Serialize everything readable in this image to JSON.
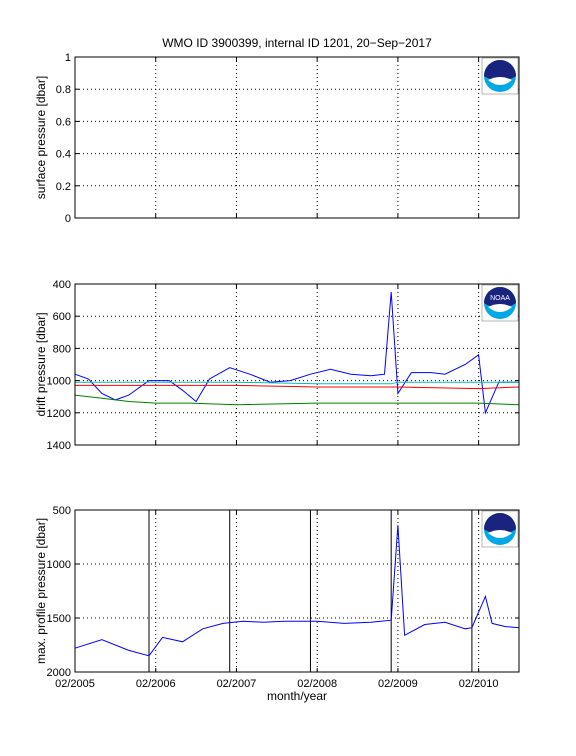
{
  "figure": {
    "title": "WMO ID 3900399, internal ID 1201, 20−Sep−2017",
    "xlabel": "month/year",
    "x_tick_labels": [
      "02/2005",
      "02/2006",
      "02/2007",
      "02/2008",
      "02/2009",
      "02/2010"
    ],
    "logo_text": "NOAA",
    "colors": {
      "blue": "#0000ff",
      "red": "#ff0000",
      "green": "#008000",
      "cyan": "#00bfbf",
      "black": "#000000",
      "noaa_navy": "#1a237e",
      "noaa_sky": "#00a8e8"
    }
  },
  "chart_data": [
    {
      "type": "line",
      "title": "WMO ID 3900399, internal ID 1201, 20−Sep−2017",
      "xlabel": "",
      "ylabel": "surface pressure [dbar]",
      "xlim": [
        "2005-02",
        "2010-08"
      ],
      "x_ticks": [
        "2005-02",
        "2006-02",
        "2007-02",
        "2008-02",
        "2009-02",
        "2010-02"
      ],
      "ylim": [
        0,
        1
      ],
      "y_ticks": [
        0,
        0.2,
        0.4,
        0.6,
        0.8,
        1
      ],
      "y_tick_labels": [
        "0",
        "0.2",
        "0.4",
        "0.6",
        "0.8",
        "1"
      ],
      "y_reversed": false,
      "grid": true,
      "series": []
    },
    {
      "type": "line",
      "xlabel": "",
      "ylabel": "drift pressure [dbar]",
      "xlim": [
        "2005-02",
        "2010-08"
      ],
      "x_ticks": [
        "2005-02",
        "2006-02",
        "2007-02",
        "2008-02",
        "2009-02",
        "2010-02"
      ],
      "ylim": [
        400,
        1400
      ],
      "y_ticks": [
        400,
        600,
        800,
        1000,
        1200,
        1400
      ],
      "y_tick_labels": [
        "400",
        "600",
        "800",
        "1000",
        "1200",
        "1400"
      ],
      "y_reversed": true,
      "grid": true,
      "series": [
        {
          "color": "#0000ff",
          "points": [
            [
              "2005-02",
              960
            ],
            [
              "2005-04",
              990
            ],
            [
              "2005-06",
              1080
            ],
            [
              "2005-08",
              1120
            ],
            [
              "2005-10",
              1090
            ],
            [
              "2006-01",
              1000
            ],
            [
              "2006-04",
              1000
            ],
            [
              "2006-06",
              1060
            ],
            [
              "2006-08",
              1130
            ],
            [
              "2006-10",
              990
            ],
            [
              "2007-01",
              920
            ],
            [
              "2007-04",
              960
            ],
            [
              "2007-07",
              1010
            ],
            [
              "2007-10",
              1000
            ],
            [
              "2008-01",
              960
            ],
            [
              "2008-04",
              930
            ],
            [
              "2008-07",
              960
            ],
            [
              "2008-10",
              970
            ],
            [
              "2008-12",
              960
            ],
            [
              "2009-01",
              450
            ],
            [
              "2009-02",
              1080
            ],
            [
              "2009-04",
              950
            ],
            [
              "2009-07",
              950
            ],
            [
              "2009-09",
              960
            ],
            [
              "2009-12",
              900
            ],
            [
              "2010-02",
              840
            ],
            [
              "2010-03",
              1200
            ],
            [
              "2010-05",
              1010
            ],
            [
              "2010-08",
              1010
            ]
          ]
        },
        {
          "color": "#ff0000",
          "points": [
            [
              "2005-02",
              1030
            ],
            [
              "2006-02",
              1030
            ],
            [
              "2007-02",
              1030
            ],
            [
              "2008-02",
              1040
            ],
            [
              "2009-01",
              1040
            ],
            [
              "2009-02",
              1040
            ],
            [
              "2010-02",
              1050
            ],
            [
              "2010-08",
              1040
            ]
          ]
        },
        {
          "color": "#008000",
          "points": [
            [
              "2005-02",
              1090
            ],
            [
              "2005-06",
              1110
            ],
            [
              "2005-10",
              1130
            ],
            [
              "2006-02",
              1140
            ],
            [
              "2006-07",
              1140
            ],
            [
              "2007-02",
              1150
            ],
            [
              "2008-02",
              1140
            ],
            [
              "2009-01",
              1140
            ],
            [
              "2009-02",
              1140
            ],
            [
              "2009-08",
              1140
            ],
            [
              "2010-02",
              1140
            ],
            [
              "2010-08",
              1150
            ]
          ]
        },
        {
          "color": "#00bfbf",
          "points": [
            [
              "2005-02",
              1010
            ],
            [
              "2006-02",
              1010
            ],
            [
              "2007-02",
              1010
            ],
            [
              "2008-02",
              1020
            ],
            [
              "2009-01",
              1020
            ],
            [
              "2009-02",
              1010
            ],
            [
              "2010-02",
              1010
            ],
            [
              "2010-08",
              1010
            ]
          ]
        }
      ]
    },
    {
      "type": "line",
      "xlabel": "month/year",
      "ylabel": "max. profile pressure [dbar]",
      "xlim": [
        "2005-02",
        "2010-08"
      ],
      "x_ticks": [
        "2005-02",
        "2006-02",
        "2007-02",
        "2008-02",
        "2009-02",
        "2010-02"
      ],
      "ylim": [
        500,
        2000
      ],
      "y_ticks": [
        500,
        1000,
        1500,
        2000
      ],
      "y_tick_labels": [
        "500",
        "1000",
        "1500",
        "2000"
      ],
      "y_reversed": true,
      "grid": true,
      "vertical_lines": [
        "2006-01",
        "2007-01",
        "2008-01",
        "2009-01",
        "2010-01"
      ],
      "series": [
        {
          "color": "#0000ff",
          "points": [
            [
              "2005-02",
              1780
            ],
            [
              "2005-06",
              1700
            ],
            [
              "2005-10",
              1800
            ],
            [
              "2006-01",
              1850
            ],
            [
              "2006-03",
              1680
            ],
            [
              "2006-06",
              1720
            ],
            [
              "2006-09",
              1600
            ],
            [
              "2006-12",
              1550
            ],
            [
              "2007-03",
              1530
            ],
            [
              "2007-06",
              1540
            ],
            [
              "2007-09",
              1530
            ],
            [
              "2008-02",
              1530
            ],
            [
              "2008-06",
              1550
            ],
            [
              "2008-10",
              1540
            ],
            [
              "2009-01",
              1520
            ],
            [
              "2009-02",
              640
            ],
            [
              "2009-03",
              1660
            ],
            [
              "2009-06",
              1560
            ],
            [
              "2009-09",
              1540
            ],
            [
              "2009-12",
              1600
            ],
            [
              "2010-01",
              1590
            ],
            [
              "2010-03",
              1300
            ],
            [
              "2010-04",
              1550
            ],
            [
              "2010-06",
              1580
            ],
            [
              "2010-08",
              1590
            ]
          ]
        }
      ]
    }
  ]
}
